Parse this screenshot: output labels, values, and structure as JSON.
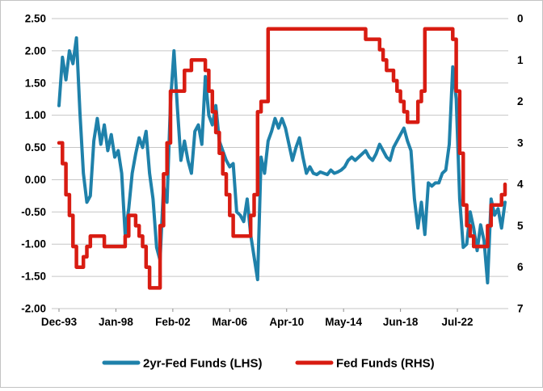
{
  "chart_data": {
    "type": "line",
    "title": "",
    "start_period": "Dec-93",
    "end_period": "Dec-25",
    "sample_interval_months": 3,
    "x_tick_labels": [
      "Dec-93",
      "Jan-98",
      "Feb-02",
      "Mar-06",
      "Apr-10",
      "May-14",
      "Jun-18",
      "Jul-22"
    ],
    "x_tick_month_offsets": [
      0,
      49,
      98,
      147,
      196,
      245,
      294,
      343
    ],
    "left_axis": {
      "side": "left",
      "min": -2.0,
      "max": 2.5,
      "step": 0.5,
      "tick_labels": [
        "2.50",
        "2.00",
        "1.50",
        "1.00",
        "0.50",
        "0.00",
        "-0.50",
        "-1.00",
        "-1.50",
        "-2.00"
      ]
    },
    "right_axis": {
      "side": "right",
      "min": 0,
      "max": 7,
      "step": 1,
      "inverted_visual": "0 at top, 7 at bottom",
      "tick_labels": [
        "0",
        "1",
        "2",
        "3",
        "4",
        "5",
        "6",
        "7"
      ]
    },
    "grid": "horizontal only",
    "legend_position": "bottom",
    "series": [
      {
        "name": "2yr-Fed Funds (LHS)",
        "axis": "left",
        "color": "#1f81aa",
        "stroke_width": 4,
        "render": "line",
        "values": [
          1.15,
          1.9,
          1.55,
          2.0,
          1.8,
          2.2,
          1.05,
          0.1,
          -0.35,
          -0.25,
          0.6,
          0.95,
          0.55,
          0.85,
          0.45,
          0.7,
          0.35,
          0.45,
          0.1,
          -0.85,
          -0.45,
          0.1,
          0.4,
          0.65,
          0.5,
          0.75,
          0.1,
          -0.3,
          -1.05,
          -1.25,
          -0.1,
          -0.35,
          1.2,
          2.0,
          1.1,
          0.3,
          0.6,
          0.3,
          0.1,
          0.75,
          0.85,
          0.55,
          1.6,
          1.0,
          0.85,
          1.15,
          0.6,
          0.45,
          0.3,
          0.2,
          0.25,
          -0.5,
          -0.55,
          -0.65,
          -0.3,
          -0.85,
          -1.2,
          -1.55,
          0.35,
          0.1,
          0.6,
          0.75,
          0.95,
          0.8,
          0.95,
          0.8,
          0.55,
          0.3,
          0.5,
          0.65,
          0.35,
          0.1,
          0.2,
          0.1,
          0.08,
          0.12,
          0.1,
          0.08,
          0.15,
          0.1,
          0.12,
          0.15,
          0.2,
          0.3,
          0.35,
          0.3,
          0.35,
          0.4,
          0.45,
          0.35,
          0.3,
          0.4,
          0.55,
          0.45,
          0.35,
          0.3,
          0.5,
          0.6,
          0.7,
          0.8,
          0.6,
          0.45,
          -0.3,
          -0.75,
          -0.35,
          -0.85,
          -0.05,
          -0.1,
          -0.05,
          -0.05,
          0.1,
          0.15,
          0.55,
          1.75,
          1.25,
          -0.3,
          -1.05,
          -1.0,
          -0.5,
          -0.75,
          -1.1,
          -0.7,
          -0.95,
          -1.6,
          -0.3,
          -0.55,
          -0.45,
          -0.75,
          -0.35
        ]
      },
      {
        "name": "Fed Funds (RHS)",
        "axis": "right",
        "color": "#d81c12",
        "stroke_width": 4.5,
        "render": "step",
        "values": [
          3.0,
          3.5,
          4.25,
          4.75,
          5.5,
          6.0,
          6.0,
          5.75,
          5.5,
          5.25,
          5.25,
          5.25,
          5.25,
          5.5,
          5.5,
          5.5,
          5.5,
          5.5,
          5.5,
          5.25,
          4.75,
          4.75,
          5.0,
          5.25,
          5.5,
          6.0,
          6.5,
          6.5,
          6.5,
          5.0,
          3.75,
          3.0,
          1.75,
          1.75,
          1.75,
          1.75,
          1.25,
          1.25,
          1.0,
          1.0,
          1.0,
          1.0,
          1.25,
          1.75,
          2.25,
          2.75,
          3.25,
          3.75,
          4.25,
          4.75,
          5.25,
          5.25,
          5.25,
          5.25,
          5.25,
          4.75,
          4.25,
          2.25,
          2.0,
          2.0,
          0.25,
          0.25,
          0.25,
          0.25,
          0.25,
          0.25,
          0.25,
          0.25,
          0.25,
          0.25,
          0.25,
          0.25,
          0.25,
          0.25,
          0.25,
          0.25,
          0.25,
          0.25,
          0.25,
          0.25,
          0.25,
          0.25,
          0.25,
          0.25,
          0.25,
          0.25,
          0.25,
          0.25,
          0.5,
          0.5,
          0.5,
          0.5,
          0.75,
          1.0,
          1.25,
          1.25,
          1.5,
          1.75,
          2.0,
          2.25,
          2.5,
          2.5,
          2.5,
          2.0,
          1.75,
          0.25,
          0.25,
          0.25,
          0.25,
          0.25,
          0.25,
          0.25,
          0.25,
          0.5,
          1.75,
          3.25,
          4.5,
          5.0,
          5.25,
          5.5,
          5.5,
          5.5,
          5.5,
          5.0,
          4.5,
          4.5,
          4.5,
          4.25,
          4.0
        ]
      }
    ],
    "colors": {
      "grid": "#c6c6c6",
      "tick": "#8c8c8c",
      "text": "#000000",
      "background": "#ffffff"
    }
  }
}
